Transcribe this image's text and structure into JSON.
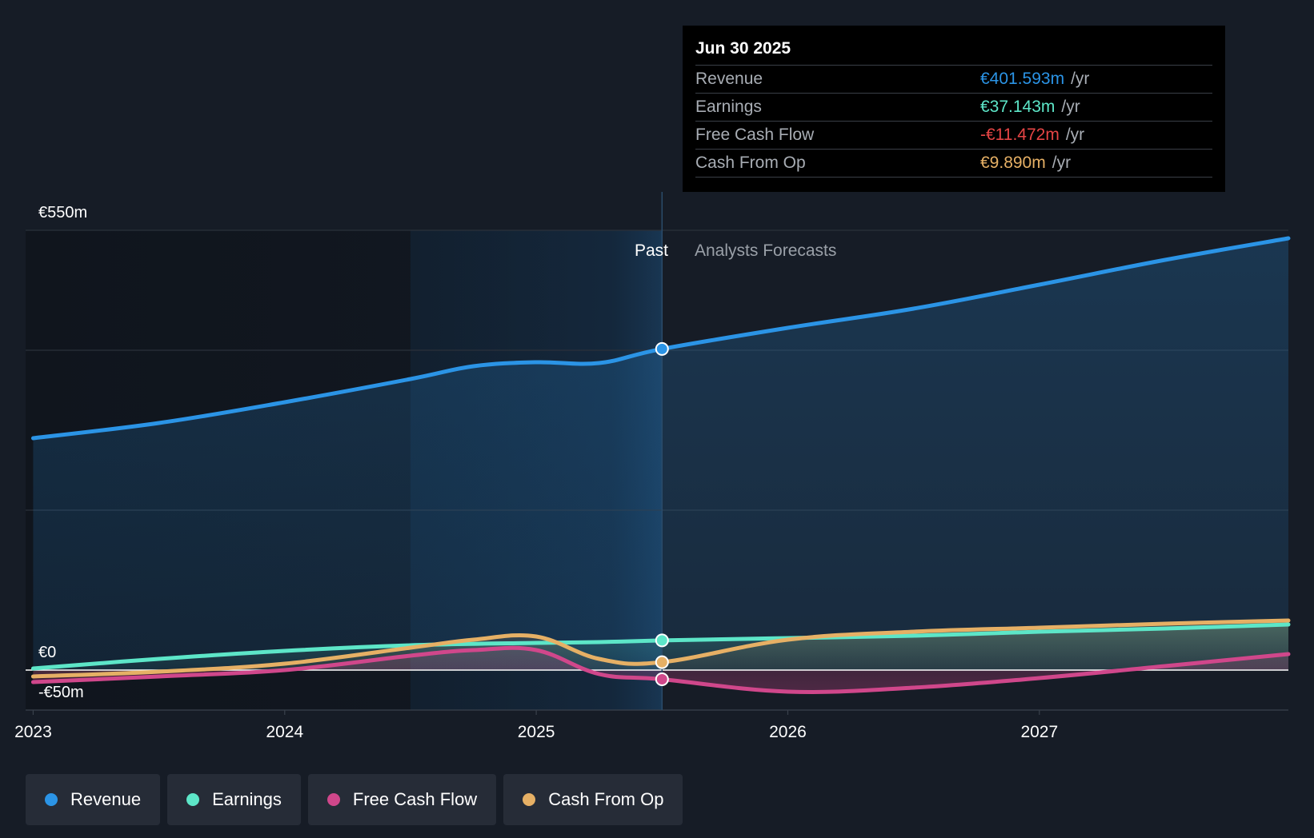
{
  "chart_data": {
    "type": "area",
    "currency_unit": "€m",
    "y_axis_labels": {
      "top": "€550m",
      "zero": "€0",
      "bottom": "-€50m"
    },
    "ylim": [
      -50,
      550
    ],
    "x_ticks": [
      2023,
      2024,
      2025,
      2026,
      2027
    ],
    "xlim": [
      2022.97,
      2027.99
    ],
    "past_label": "Past",
    "forecast_label": "Analysts Forecasts",
    "past_forecast_divider_x": 2025.5,
    "highlight_band_start_x": 2024.5,
    "series": [
      {
        "name": "Revenue",
        "color": "#2b94e6",
        "points": [
          [
            2023.0,
            290
          ],
          [
            2023.5,
            309
          ],
          [
            2024.0,
            335
          ],
          [
            2024.5,
            364
          ],
          [
            2024.75,
            380
          ],
          [
            2025.0,
            385
          ],
          [
            2025.25,
            384
          ],
          [
            2025.5,
            401.6
          ],
          [
            2026.0,
            428
          ],
          [
            2026.5,
            452
          ],
          [
            2027.0,
            482
          ],
          [
            2027.5,
            513
          ],
          [
            2027.99,
            540
          ]
        ]
      },
      {
        "name": "Earnings",
        "color": "#5de6c8",
        "points": [
          [
            2023.0,
            2
          ],
          [
            2023.5,
            14
          ],
          [
            2024.0,
            24
          ],
          [
            2024.5,
            31
          ],
          [
            2025.0,
            34
          ],
          [
            2025.25,
            35
          ],
          [
            2025.5,
            37.1
          ],
          [
            2026.0,
            40
          ],
          [
            2026.5,
            43
          ],
          [
            2027.0,
            48
          ],
          [
            2027.5,
            52
          ],
          [
            2027.99,
            57
          ]
        ]
      },
      {
        "name": "Free Cash Flow",
        "color": "#d0478b",
        "points": [
          [
            2023.0,
            -15
          ],
          [
            2023.5,
            -8
          ],
          [
            2024.0,
            0
          ],
          [
            2024.5,
            18
          ],
          [
            2024.75,
            25
          ],
          [
            2025.0,
            25
          ],
          [
            2025.25,
            -5
          ],
          [
            2025.5,
            -11.5
          ],
          [
            2026.0,
            -27
          ],
          [
            2026.5,
            -22
          ],
          [
            2027.0,
            -10
          ],
          [
            2027.5,
            5
          ],
          [
            2027.99,
            20
          ]
        ]
      },
      {
        "name": "Cash From Op",
        "color": "#e6b065",
        "points": [
          [
            2023.0,
            -8
          ],
          [
            2023.5,
            -2
          ],
          [
            2024.0,
            8
          ],
          [
            2024.5,
            28
          ],
          [
            2024.75,
            38
          ],
          [
            2025.0,
            42
          ],
          [
            2025.25,
            14
          ],
          [
            2025.5,
            9.9
          ],
          [
            2026.0,
            38
          ],
          [
            2026.5,
            48
          ],
          [
            2027.0,
            53
          ],
          [
            2027.5,
            58
          ],
          [
            2027.99,
            62
          ]
        ]
      }
    ],
    "markers_at_x": 2025.5
  },
  "tooltip": {
    "date": "Jun 30 2025",
    "rows": [
      {
        "label": "Revenue",
        "value": "€401.593m",
        "unit": "/yr",
        "color": "#2b94e6"
      },
      {
        "label": "Earnings",
        "value": "€37.143m",
        "unit": "/yr",
        "color": "#5de6c8"
      },
      {
        "label": "Free Cash Flow",
        "value": "-€11.472m",
        "unit": "/yr",
        "color": "#e64545"
      },
      {
        "label": "Cash From Op",
        "value": "€9.890m",
        "unit": "/yr",
        "color": "#e6b065"
      }
    ]
  },
  "legend": [
    {
      "label": "Revenue",
      "color": "#2b94e6"
    },
    {
      "label": "Earnings",
      "color": "#5de6c8"
    },
    {
      "label": "Free Cash Flow",
      "color": "#d0478b"
    },
    {
      "label": "Cash From Op",
      "color": "#e6b065"
    }
  ]
}
